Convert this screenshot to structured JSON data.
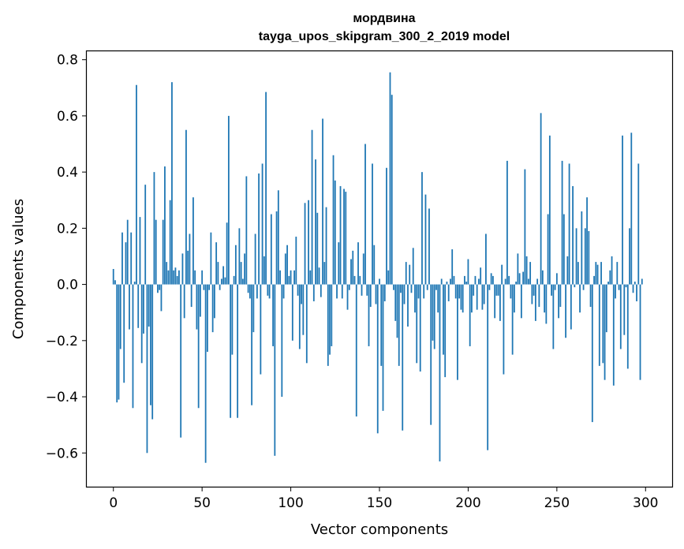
{
  "chart_data": {
    "type": "bar",
    "title": "мордвина",
    "subtitle": "tayga_upos_skipgram_300_2_2019 model",
    "xlabel": "Vector components",
    "ylabel": "Components values",
    "xlim": [
      -15,
      315
    ],
    "ylim": [
      -0.72,
      0.83
    ],
    "xticks": [
      0,
      50,
      100,
      150,
      200,
      250,
      300
    ],
    "xtick_labels": [
      "0",
      "50",
      "100",
      "150",
      "200",
      "250",
      "300"
    ],
    "yticks": [
      -0.6,
      -0.4,
      -0.2,
      0.0,
      0.2,
      0.4,
      0.6,
      0.8
    ],
    "ytick_labels": [
      "−0.6",
      "−0.4",
      "−0.2",
      "0.0",
      "0.2",
      "0.4",
      "0.6",
      "0.8"
    ],
    "grid": false,
    "bar_color": "#1f77b4",
    "values": [
      0.055,
      0.015,
      -0.42,
      -0.41,
      -0.23,
      0.185,
      -0.35,
      0.15,
      0.23,
      -0.16,
      0.185,
      -0.44,
      0.01,
      0.71,
      -0.155,
      0.24,
      -0.28,
      -0.175,
      0.355,
      -0.6,
      -0.15,
      -0.43,
      -0.48,
      0.4,
      0.23,
      -0.03,
      -0.02,
      -0.095,
      0.23,
      0.42,
      0.08,
      0.05,
      0.3,
      0.72,
      0.05,
      0.06,
      0.03,
      0.05,
      -0.545,
      0.11,
      -0.12,
      0.55,
      0.12,
      0.18,
      -0.08,
      0.31,
      0.05,
      -0.16,
      -0.44,
      -0.115,
      0.05,
      -0.02,
      -0.635,
      -0.24,
      -0.02,
      0.185,
      -0.17,
      -0.12,
      0.15,
      0.08,
      -0.02,
      0.02,
      0.065,
      0.025,
      0.22,
      0.6,
      -0.475,
      -0.25,
      0.03,
      0.14,
      -0.475,
      0.2,
      0.08,
      0.02,
      0.11,
      0.385,
      -0.03,
      -0.05,
      -0.43,
      -0.17,
      0.18,
      -0.05,
      0.395,
      -0.32,
      0.43,
      0.1,
      0.685,
      -0.04,
      -0.05,
      0.25,
      -0.22,
      -0.61,
      0.26,
      0.335,
      0.05,
      -0.4,
      -0.05,
      0.11,
      0.14,
      0.03,
      0.05,
      -0.2,
      0.05,
      0.17,
      -0.04,
      -0.23,
      -0.07,
      -0.18,
      0.29,
      -0.28,
      0.3,
      0.05,
      0.55,
      -0.06,
      0.445,
      0.255,
      0.06,
      -0.045,
      0.59,
      0.08,
      0.275,
      -0.29,
      -0.25,
      -0.22,
      0.46,
      0.37,
      -0.05,
      0.15,
      0.35,
      -0.05,
      0.34,
      0.33,
      -0.09,
      -0.02,
      0.09,
      0.12,
      0.03,
      -0.47,
      0.15,
      0.03,
      -0.04,
      0.11,
      0.5,
      -0.04,
      -0.22,
      -0.08,
      0.43,
      0.14,
      -0.07,
      -0.53,
      0.02,
      -0.29,
      -0.45,
      -0.06,
      0.415,
      0.05,
      0.755,
      0.675,
      -0.02,
      -0.13,
      -0.19,
      -0.29,
      -0.03,
      -0.52,
      -0.07,
      0.08,
      -0.15,
      0.07,
      -0.03,
      0.13,
      -0.1,
      -0.28,
      -0.05,
      -0.31,
      0.4,
      -0.05,
      0.32,
      -0.02,
      0.27,
      -0.5,
      -0.2,
      -0.23,
      -0.02,
      -0.1,
      -0.63,
      0.02,
      -0.25,
      -0.33,
      0.01,
      -0.06,
      0.02,
      0.125,
      0.03,
      -0.05,
      -0.34,
      -0.05,
      -0.09,
      -0.1,
      0.03,
      0.01,
      0.09,
      -0.22,
      -0.1,
      -0.04,
      0.03,
      -0.09,
      0.02,
      0.06,
      -0.09,
      -0.07,
      0.18,
      -0.59,
      -0.02,
      0.04,
      0.03,
      -0.12,
      -0.04,
      -0.04,
      -0.13,
      0.07,
      -0.32,
      0.02,
      0.44,
      0.03,
      -0.05,
      -0.25,
      -0.1,
      0.01,
      0.11,
      0.04,
      -0.12,
      0.045,
      0.41,
      0.1,
      0.02,
      0.08,
      -0.07,
      -0.04,
      -0.13,
      0.02,
      -0.08,
      0.61,
      0.05,
      -0.1,
      -0.14,
      0.25,
      0.53,
      -0.04,
      -0.23,
      -0.02,
      0.04,
      -0.12,
      -0.08,
      0.44,
      0.25,
      -0.19,
      0.1,
      0.43,
      -0.16,
      0.35,
      -0.01,
      0.2,
      0.08,
      -0.1,
      0.26,
      -0.02,
      0.2,
      0.31,
      0.19,
      -0.08,
      -0.49,
      0.03,
      0.08,
      0.07,
      -0.29,
      0.08,
      -0.28,
      -0.34,
      -0.17,
      0.01,
      0.05,
      0.1,
      -0.36,
      -0.05,
      0.08,
      -0.02,
      -0.23,
      0.53,
      -0.18,
      -0.01,
      -0.3,
      0.2,
      0.54,
      -0.03,
      0.01,
      -0.06,
      0.43,
      -0.34,
      0.02
    ]
  }
}
